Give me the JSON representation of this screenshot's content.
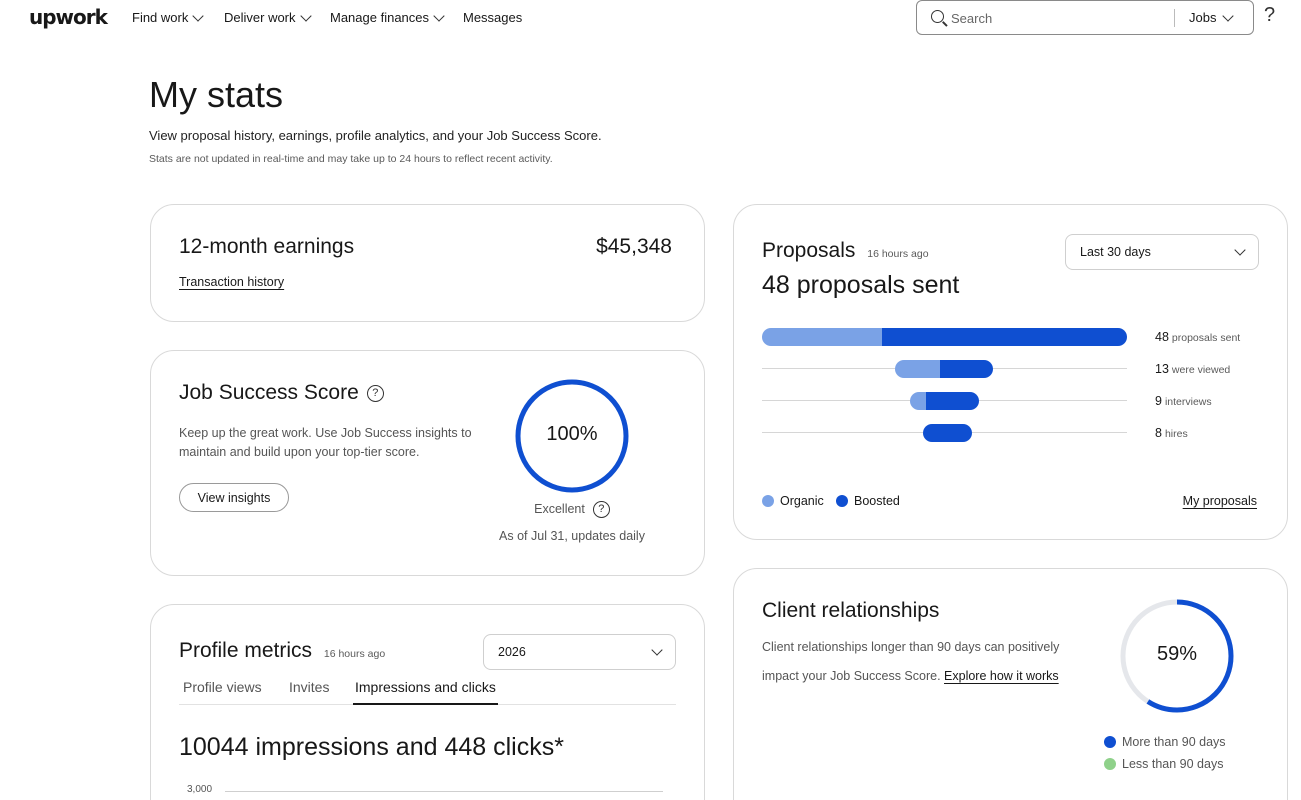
{
  "nav": {
    "logo": "upwork",
    "items": [
      {
        "label": "Find work"
      },
      {
        "label": "Deliver work"
      },
      {
        "label": "Manage finances"
      },
      {
        "label": "Messages"
      }
    ],
    "search_placeholder": "Search",
    "search_scope": "Jobs",
    "help": "?"
  },
  "header": {
    "title": "My stats",
    "subtitle": "View proposal history, earnings, profile analytics, and your Job Success Score.",
    "note": "Stats are not updated in real-time and may take up to 24 hours to reflect recent activity."
  },
  "earnings": {
    "title": "12-month earnings",
    "amount": "$45,348",
    "link": "Transaction history"
  },
  "jss": {
    "title": "Job Success Score",
    "description": "Keep up the great work. Use Job Success insights to maintain and build upon your top-tier score.",
    "button": "View insights",
    "value": "100%",
    "fraction": 1.0,
    "rating": "Excellent",
    "as_of": "As of Jul 31, updates daily",
    "ring_color": "#0f4fd1"
  },
  "profile_metrics": {
    "title": "Profile metrics",
    "updated": "16 hours ago",
    "year": "2026",
    "tabs": [
      "Profile views",
      "Invites",
      "Impressions and clicks"
    ],
    "active_tab": 2,
    "headline": "10044 impressions and 448 clicks*",
    "axis_top_tick": "3,000"
  },
  "proposals": {
    "title": "Proposals",
    "updated": "16 hours ago",
    "range": "Last 30 days",
    "headline": "48 proposals sent",
    "colors": {
      "organic": "#7aa2e6",
      "boosted": "#0f4fd1"
    },
    "funnel": [
      {
        "count": "48",
        "label": "proposals sent"
      },
      {
        "count": "13",
        "label": "were viewed"
      },
      {
        "count": "9",
        "label": "interviews"
      },
      {
        "count": "8",
        "label": "hires"
      }
    ],
    "legend": {
      "organic": "Organic",
      "boosted": "Boosted"
    },
    "link": "My proposals"
  },
  "client": {
    "title": "Client relationships",
    "description": "Client relationships longer than 90 days can positively impact your Job Success Score.",
    "link": "Explore how it works",
    "value": "59%",
    "fraction": 0.59,
    "legend": {
      "more": "More than 90 days",
      "less": "Less than 90 days"
    },
    "colors": {
      "more": "#0f4fd1",
      "less": "#8fd18a",
      "track": "#e5e7eb"
    }
  }
}
